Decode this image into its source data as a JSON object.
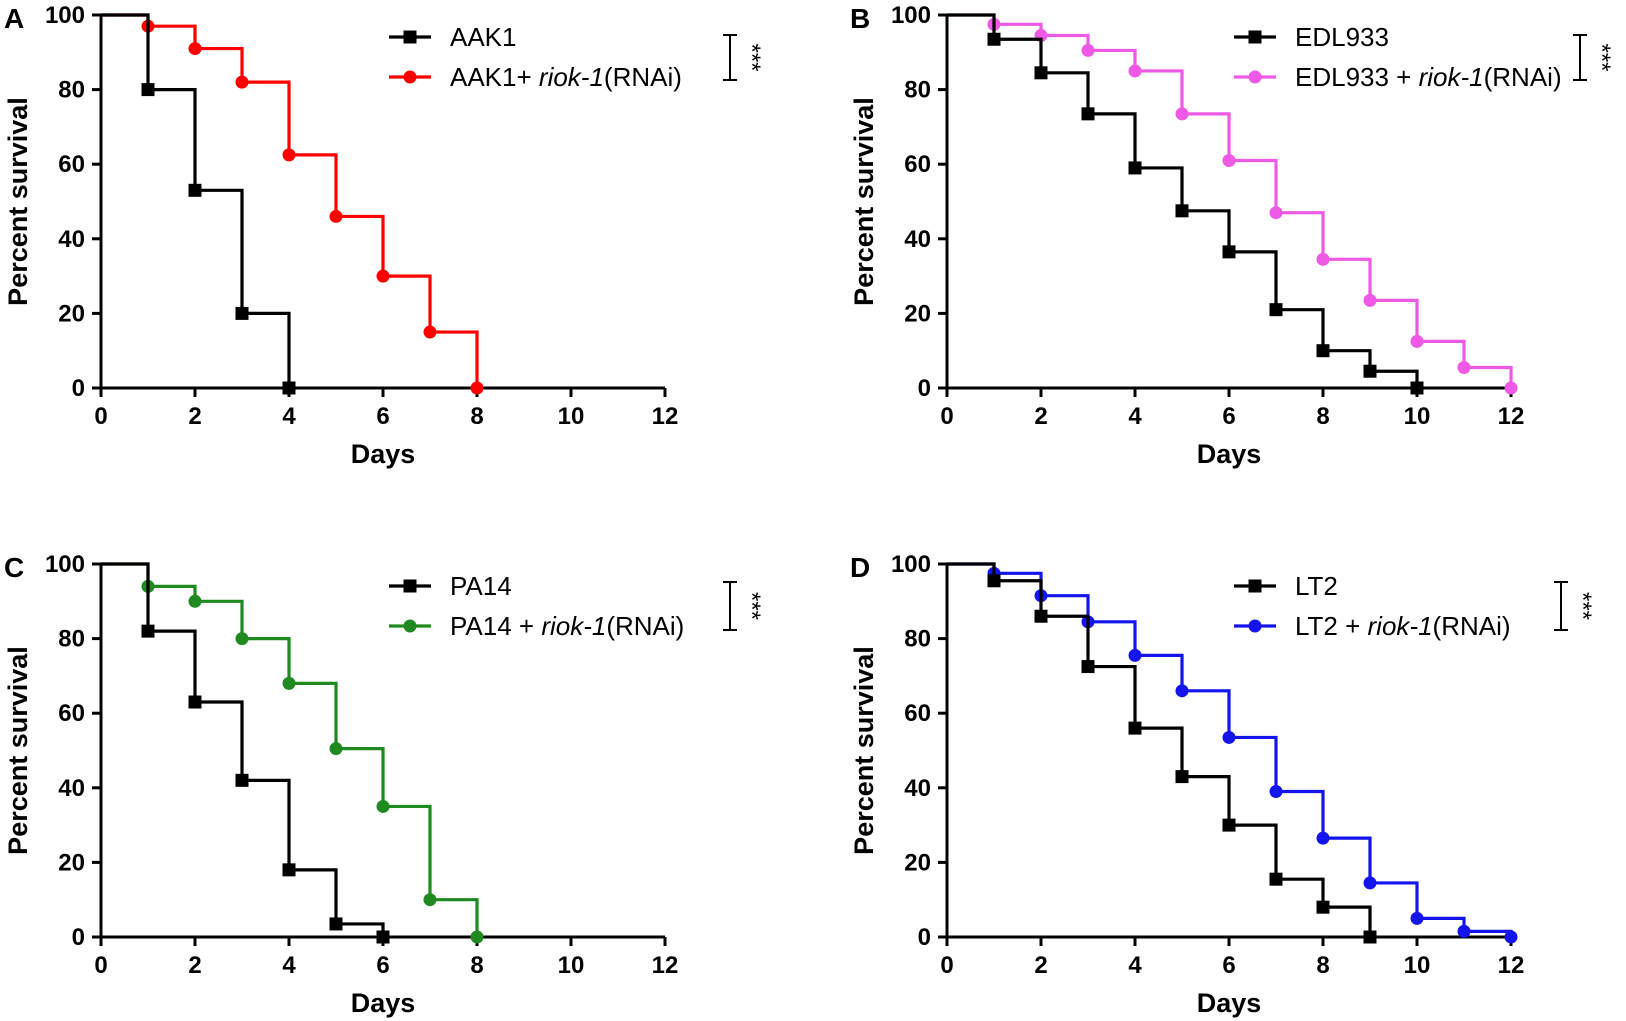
{
  "figure": {
    "chart_data": [
      {
        "panel": "A",
        "type": "line",
        "subtype": "kaplan-meier",
        "xlabel": "Days",
        "ylabel": "Percent survival",
        "xlim": [
          0,
          12
        ],
        "ylim": [
          0,
          100
        ],
        "xticks": [
          "0",
          "2",
          "4",
          "6",
          "8",
          "10",
          "12"
        ],
        "yticks": [
          "0",
          "20",
          "40",
          "60",
          "80",
          "100"
        ],
        "legend_position": "top-right",
        "significance": "***",
        "series": [
          {
            "name": "AAK1",
            "name_suffix": "",
            "color": "#000000",
            "marker": "square",
            "x": [
              0,
              1,
              2,
              3,
              4
            ],
            "y": [
              100,
              80,
              53,
              20,
              0
            ]
          },
          {
            "name": "AAK1+ ",
            "name_italic": "riok-1",
            "name_suffix": "(RNAi)",
            "color": "#ff0000",
            "marker": "circle",
            "x": [
              0,
              1,
              2,
              3,
              4,
              5,
              6,
              7,
              8
            ],
            "y": [
              100,
              97,
              91,
              82,
              62.5,
              46,
              30,
              15,
              0
            ]
          }
        ]
      },
      {
        "panel": "B",
        "type": "line",
        "subtype": "kaplan-meier",
        "xlabel": "Days",
        "ylabel": "Percent survival",
        "xlim": [
          0,
          12
        ],
        "ylim": [
          0,
          100
        ],
        "xticks": [
          "0",
          "2",
          "4",
          "6",
          "8",
          "10",
          "12"
        ],
        "yticks": [
          "0",
          "20",
          "40",
          "60",
          "80",
          "100"
        ],
        "legend_position": "top-right",
        "significance": "***",
        "series": [
          {
            "name": "EDL933",
            "name_suffix": "",
            "color": "#000000",
            "marker": "square",
            "x": [
              0,
              1,
              2,
              3,
              4,
              5,
              6,
              7,
              8,
              9,
              10
            ],
            "y": [
              100,
              93.5,
              84.5,
              73.5,
              59,
              47.5,
              36.5,
              21,
              10,
              4.5,
              0
            ]
          },
          {
            "name": "EDL933 + ",
            "name_italic": "riok-1",
            "name_suffix": "(RNAi)",
            "color": "#ee59e6",
            "marker": "circle",
            "x": [
              0,
              1,
              2,
              3,
              4,
              5,
              6,
              7,
              8,
              9,
              10,
              11,
              12
            ],
            "y": [
              100,
              97.5,
              94.5,
              90.5,
              85,
              73.5,
              61,
              47,
              34.5,
              23.5,
              12.5,
              5.5,
              0
            ]
          }
        ]
      },
      {
        "panel": "C",
        "type": "line",
        "subtype": "kaplan-meier",
        "xlabel": "Days",
        "ylabel": "Percent survival",
        "xlim": [
          0,
          12
        ],
        "ylim": [
          0,
          100
        ],
        "xticks": [
          "0",
          "2",
          "4",
          "6",
          "8",
          "10",
          "12"
        ],
        "yticks": [
          "0",
          "20",
          "40",
          "60",
          "80",
          "100"
        ],
        "legend_position": "top-right",
        "significance": "***",
        "series": [
          {
            "name": "PA14",
            "name_suffix": "",
            "color": "#000000",
            "marker": "square",
            "x": [
              0,
              1,
              2,
              3,
              4,
              5,
              6
            ],
            "y": [
              100,
              82,
              63,
              42,
              18,
              3.5,
              0
            ]
          },
          {
            "name": "PA14 + ",
            "name_italic": "riok-1",
            "name_suffix": "(RNAi)",
            "color": "#1f8a1f",
            "marker": "circle",
            "x": [
              0,
              1,
              2,
              3,
              4,
              5,
              6,
              7,
              8
            ],
            "y": [
              100,
              94,
              90,
              80,
              68,
              50.5,
              35,
              10,
              0
            ]
          }
        ]
      },
      {
        "panel": "D",
        "type": "line",
        "subtype": "kaplan-meier",
        "xlabel": "Days",
        "ylabel": "Percent survival",
        "xlim": [
          0,
          12
        ],
        "ylim": [
          0,
          100
        ],
        "xticks": [
          "0",
          "2",
          "4",
          "6",
          "8",
          "10",
          "12"
        ],
        "yticks": [
          "0",
          "20",
          "40",
          "60",
          "80",
          "100"
        ],
        "legend_position": "top-right",
        "significance": "***",
        "series": [
          {
            "name": "LT2",
            "name_suffix": "",
            "color": "#000000",
            "marker": "square",
            "x": [
              0,
              1,
              2,
              3,
              4,
              5,
              6,
              7,
              8,
              9
            ],
            "y": [
              100,
              95.5,
              86,
              72.5,
              56,
              43,
              30,
              15.5,
              8,
              0
            ]
          },
          {
            "name": "LT2 + ",
            "name_italic": "riok-1",
            "name_suffix": "(RNAi)",
            "color": "#1414ee",
            "marker": "circle",
            "x": [
              0,
              1,
              2,
              3,
              4,
              5,
              6,
              7,
              8,
              9,
              10,
              11,
              12
            ],
            "y": [
              100,
              97.5,
              91.5,
              84.5,
              75.5,
              66,
              53.5,
              39,
              26.5,
              14.5,
              5,
              1.5,
              0
            ]
          }
        ]
      }
    ]
  }
}
